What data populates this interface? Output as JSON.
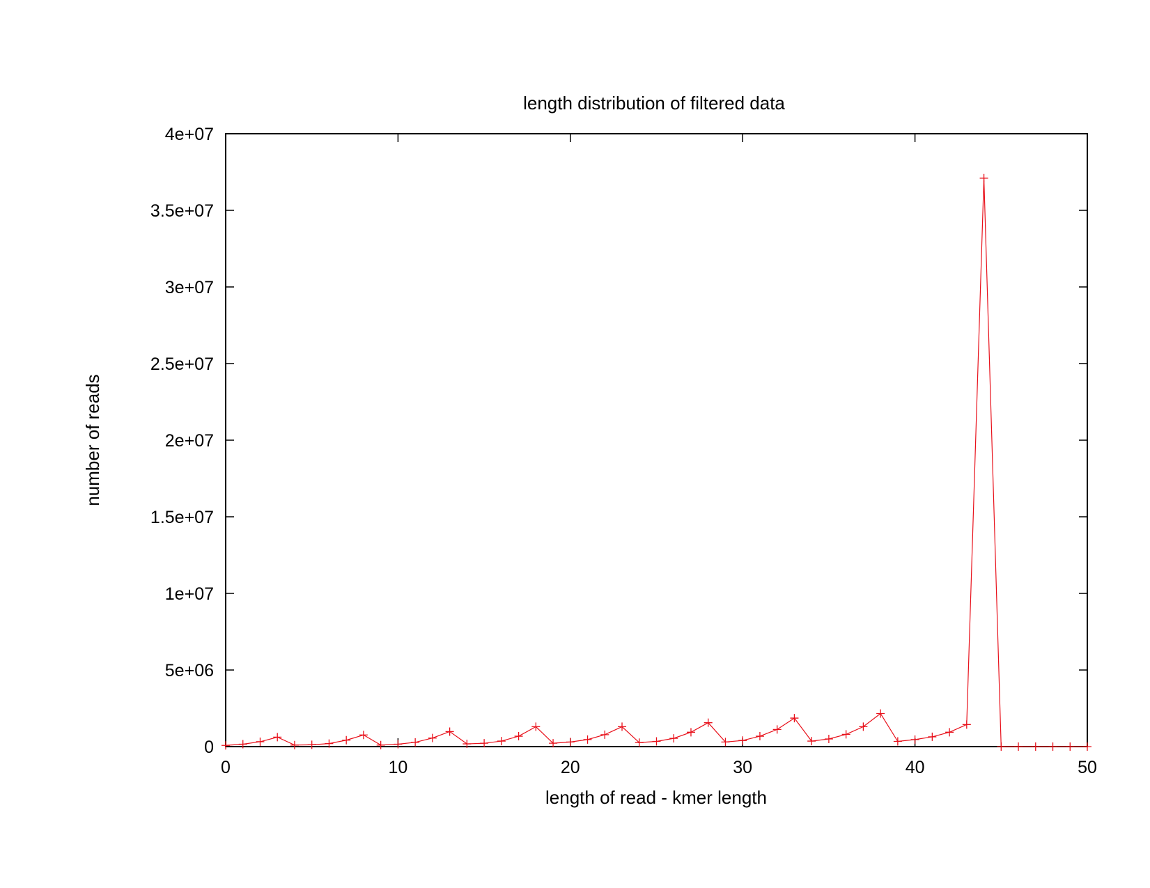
{
  "chart_data": {
    "type": "line",
    "title": "length distribution of filtered data",
    "xlabel": "length of read - kmer length",
    "ylabel": "number of reads",
    "xlim": [
      0,
      50
    ],
    "ylim": [
      0,
      40000000
    ],
    "xticks": [
      0,
      10,
      20,
      30,
      40,
      50
    ],
    "xtick_labels": [
      "0",
      "10",
      "20",
      "30",
      "40",
      "50"
    ],
    "yticks": [
      0,
      5000000,
      10000000,
      15000000,
      20000000,
      25000000,
      30000000,
      35000000,
      40000000
    ],
    "ytick_labels": [
      "0",
      "5e+06",
      "1e+07",
      "1.5e+07",
      "2e+07",
      "2.5e+07",
      "3e+07",
      "3.5e+07",
      "4e+07"
    ],
    "grid": false,
    "legend": "none",
    "marker": "plus",
    "colors": {
      "series": "#e8101a",
      "axes": "#000000",
      "background": "#ffffff"
    },
    "series": [
      {
        "x": [
          0,
          1,
          2,
          3,
          4,
          5,
          6,
          7,
          8,
          9,
          10,
          11,
          12,
          13,
          14,
          15,
          16,
          17,
          18,
          19,
          20,
          21,
          22,
          23,
          24,
          25,
          26,
          27,
          28,
          29,
          30,
          31,
          32,
          33,
          34,
          35,
          36,
          37,
          38,
          39,
          40,
          41,
          42,
          43,
          44,
          45,
          46,
          47,
          48,
          49,
          50
        ],
        "y": [
          80000,
          160000,
          320000,
          620000,
          100000,
          120000,
          200000,
          420000,
          760000,
          100000,
          160000,
          280000,
          560000,
          980000,
          180000,
          220000,
          360000,
          680000,
          1300000,
          220000,
          300000,
          460000,
          780000,
          1300000,
          260000,
          340000,
          540000,
          940000,
          1560000,
          300000,
          400000,
          680000,
          1120000,
          1860000,
          360000,
          500000,
          800000,
          1300000,
          2160000,
          340000,
          460000,
          640000,
          940000,
          1440000,
          37100000,
          0,
          0,
          0,
          0,
          0,
          0
        ]
      }
    ]
  }
}
